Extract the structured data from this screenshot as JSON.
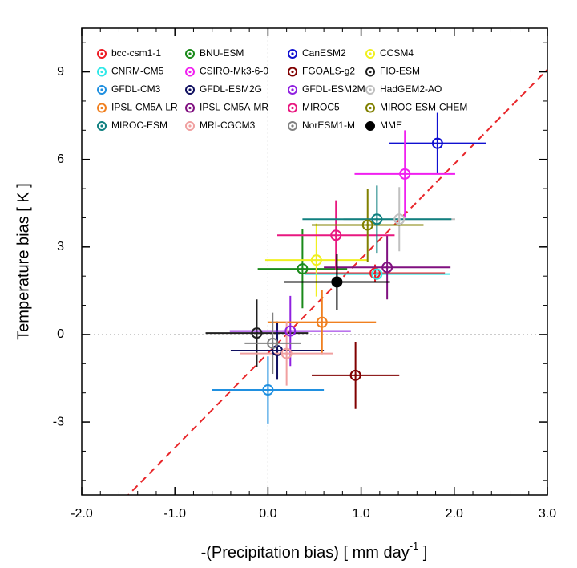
{
  "chart_data": {
    "type": "scatter",
    "xlabel": "-(Precipitation bias) [ mm day",
    "xlabel_sup": "-1",
    "xlabel_end": " ]",
    "ylabel": "Temperature bias [ K ]",
    "xlim": [
      -2,
      3
    ],
    "ylim": [
      -5.5,
      10.5
    ],
    "xticks": [
      {
        "value": -2,
        "label": "-2.0"
      },
      {
        "value": -1,
        "label": "-1.0"
      },
      {
        "value": 0,
        "label": "0.0"
      },
      {
        "value": 1,
        "label": "1.0"
      },
      {
        "value": 2,
        "label": "2.0"
      },
      {
        "value": 3,
        "label": "3.0"
      }
    ],
    "yticks": [
      -3,
      0,
      3,
      6,
      9
    ],
    "fit_line": {
      "slope": 3.24,
      "intercept": -0.64,
      "color": "#e8262a"
    },
    "series": [
      {
        "name": "bcc-csm1-1",
        "color": "#ee1c25",
        "x": 1.15,
        "y": 2.1,
        "xerr": 0.75,
        "yerr": 0.3
      },
      {
        "name": "BNU-ESM",
        "color": "#1a8a1a",
        "x": 0.37,
        "y": 2.25,
        "xerr": 0.48,
        "yerr": 1.35
      },
      {
        "name": "CanESM2",
        "color": "#1010d0",
        "x": 1.82,
        "y": 6.55,
        "xerr": 0.52,
        "yerr": 1.05
      },
      {
        "name": "CCSM4",
        "color": "#f0f020",
        "x": 0.52,
        "y": 2.55,
        "xerr": 0.55,
        "yerr": 1.25
      },
      {
        "name": "CNRM-CM5",
        "color": "#30e8e8",
        "x": 1.17,
        "y": 2.07,
        "xerr": 0.78,
        "yerr": 0.2
      },
      {
        "name": "CSIRO-Mk3-6-0",
        "color": "#f020f0",
        "x": 1.47,
        "y": 5.5,
        "xerr": 0.54,
        "yerr": 1.5
      },
      {
        "name": "FGOALS-g2",
        "color": "#800000",
        "x": 0.94,
        "y": -1.4,
        "xerr": 0.47,
        "yerr": 1.15
      },
      {
        "name": "FIO-ESM",
        "color": "#202020",
        "x": -0.12,
        "y": 0.05,
        "xerr": 0.55,
        "yerr": 1.15
      },
      {
        "name": "GFDL-CM3",
        "color": "#2090e0",
        "x": 0.0,
        "y": -1.9,
        "xerr": 0.6,
        "yerr": 1.15
      },
      {
        "name": "GFDL-ESM2G",
        "color": "#101060",
        "x": 0.1,
        "y": -0.55,
        "xerr": 0.5,
        "yerr": 1.0
      },
      {
        "name": "GFDL-ESM2M",
        "color": "#9020e0",
        "x": 0.24,
        "y": 0.12,
        "xerr": 0.65,
        "yerr": 1.2
      },
      {
        "name": "HadGEM2-AO",
        "color": "#c0c0c0",
        "x": 1.41,
        "y": 3.95,
        "xerr": 0.6,
        "yerr": 1.1
      },
      {
        "name": "IPSL-CM5A-LR",
        "color": "#f08020",
        "x": 0.58,
        "y": 0.42,
        "xerr": 0.58,
        "yerr": 1.1
      },
      {
        "name": "IPSL-CM5A-MR",
        "color": "#801080",
        "x": 1.28,
        "y": 2.3,
        "xerr": 0.68,
        "yerr": 1.1
      },
      {
        "name": "MIROC5",
        "color": "#e81880",
        "x": 0.73,
        "y": 3.4,
        "xerr": 0.63,
        "yerr": 1.2
      },
      {
        "name": "MIROC-ESM-CHEM",
        "color": "#808000",
        "x": 1.07,
        "y": 3.75,
        "xerr": 0.6,
        "yerr": 1.25
      },
      {
        "name": "MIROC-ESM",
        "color": "#108080",
        "x": 1.17,
        "y": 3.95,
        "xerr": 0.8,
        "yerr": 1.15
      },
      {
        "name": "MRI-CGCM3",
        "color": "#f0a0a0",
        "x": 0.2,
        "y": -0.65,
        "xerr": 0.5,
        "yerr": 1.1
      },
      {
        "name": "NorESM1-M",
        "color": "#808080",
        "x": 0.05,
        "y": -0.3,
        "xerr": 0.3,
        "yerr": 1.05
      },
      {
        "name": "MME",
        "color": "#000000",
        "x": 0.74,
        "y": 1.8,
        "xerr": 0.57,
        "yerr": 0.95,
        "filled": true
      }
    ]
  }
}
